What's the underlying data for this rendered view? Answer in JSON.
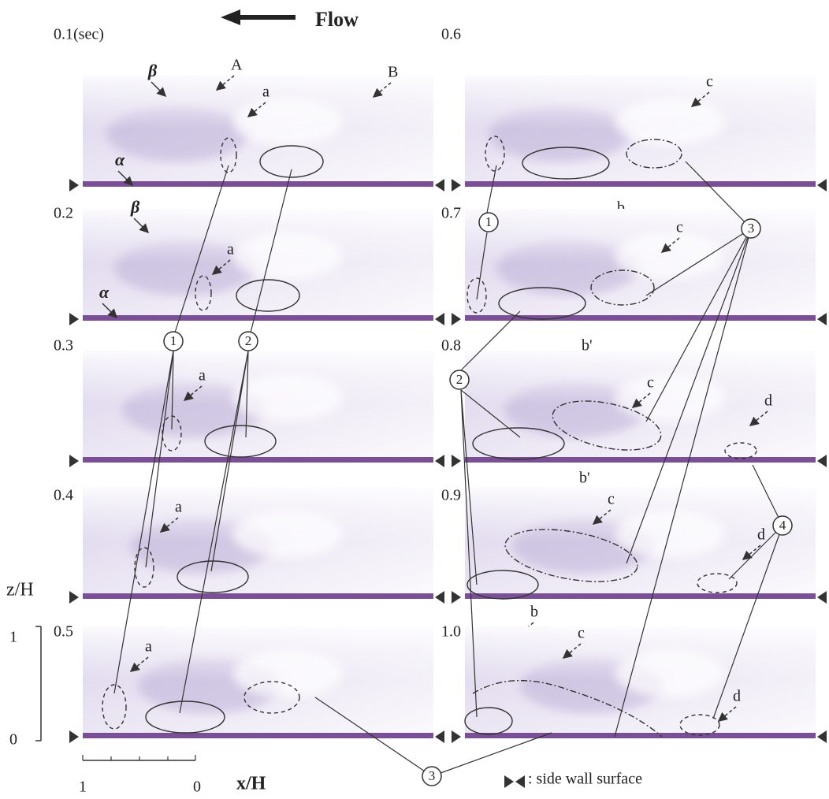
{
  "header": {
    "flow": "Flow"
  },
  "panels": [
    {
      "time": "0.1(sec)",
      "annotations": [
        "β",
        "A",
        "a",
        "B",
        "α"
      ]
    },
    {
      "time": "0.2",
      "annotations": [
        "β",
        "a",
        "α"
      ]
    },
    {
      "time": "0.3",
      "annotations": [
        "a"
      ]
    },
    {
      "time": "0.4",
      "annotations": [
        "a"
      ]
    },
    {
      "time": "0.5",
      "annotations": [
        "a"
      ]
    },
    {
      "time": "0.6",
      "annotations": [
        "c",
        "b"
      ]
    },
    {
      "time": "0.7",
      "annotations": [
        "c",
        "b'"
      ]
    },
    {
      "time": "0.8",
      "annotations": [
        "c",
        "d",
        "b'"
      ]
    },
    {
      "time": "0.9",
      "annotations": [
        "c",
        "d",
        "b"
      ]
    },
    {
      "time": "1.0",
      "annotations": [
        "c",
        "d"
      ]
    }
  ],
  "circled": [
    "1",
    "2",
    "3",
    "1",
    "2",
    "4",
    "3"
  ],
  "axes": {
    "z_label": "z/H",
    "z_ticks": [
      "1",
      "0"
    ],
    "x_label": "x/H",
    "x_ticks": [
      "1",
      "0"
    ]
  },
  "legend": ": side wall surface"
}
